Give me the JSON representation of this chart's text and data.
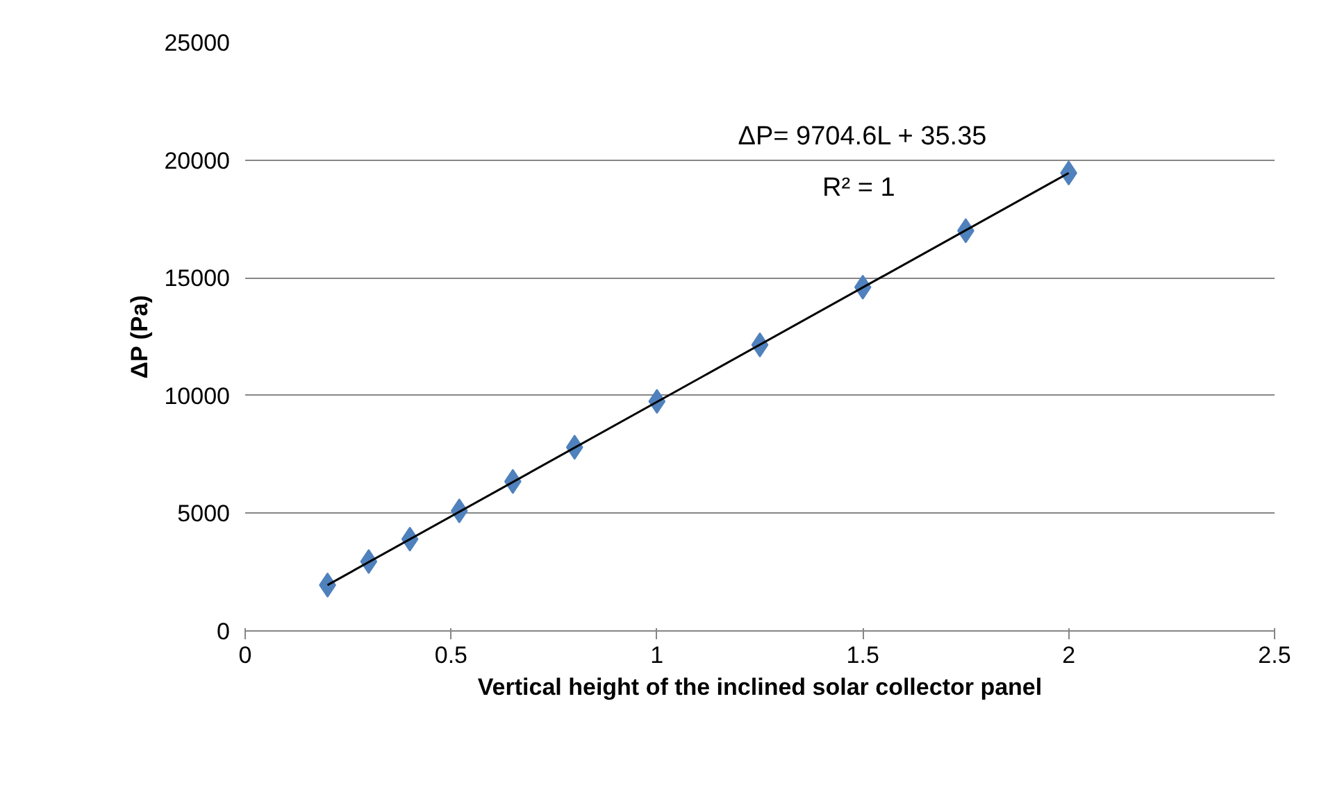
{
  "chart_data": {
    "type": "scatter",
    "xlabel": "Vertical height of the inclined solar collector panel",
    "ylabel": "ΔP (Pa)",
    "xlim": [
      0,
      2.5
    ],
    "xticks": [
      0,
      0.5,
      1,
      1.5,
      2,
      2.5
    ],
    "ylim": [
      0,
      25000
    ],
    "yticks": [
      0,
      5000,
      10000,
      15000,
      20000,
      25000
    ],
    "grid": "y",
    "marker": "diamond",
    "annotations": [
      "ΔP= 9704.6L + 35.35",
      "R² = 1"
    ],
    "series": [
      {
        "color": "#4f81bd",
        "x": [
          0.2,
          0.3,
          0.4,
          0.52,
          0.65,
          0.8,
          1,
          1.25,
          1.5,
          1.75,
          2
        ],
        "values": [
          1950,
          2950,
          3900,
          5100,
          6350,
          7800,
          9750,
          12150,
          14600,
          17000,
          19450
        ]
      },
      {
        "type": "line",
        "marker": "none",
        "color": "#000000",
        "x": [
          0.2,
          2
        ],
        "values": [
          1950,
          19450
        ]
      }
    ]
  }
}
